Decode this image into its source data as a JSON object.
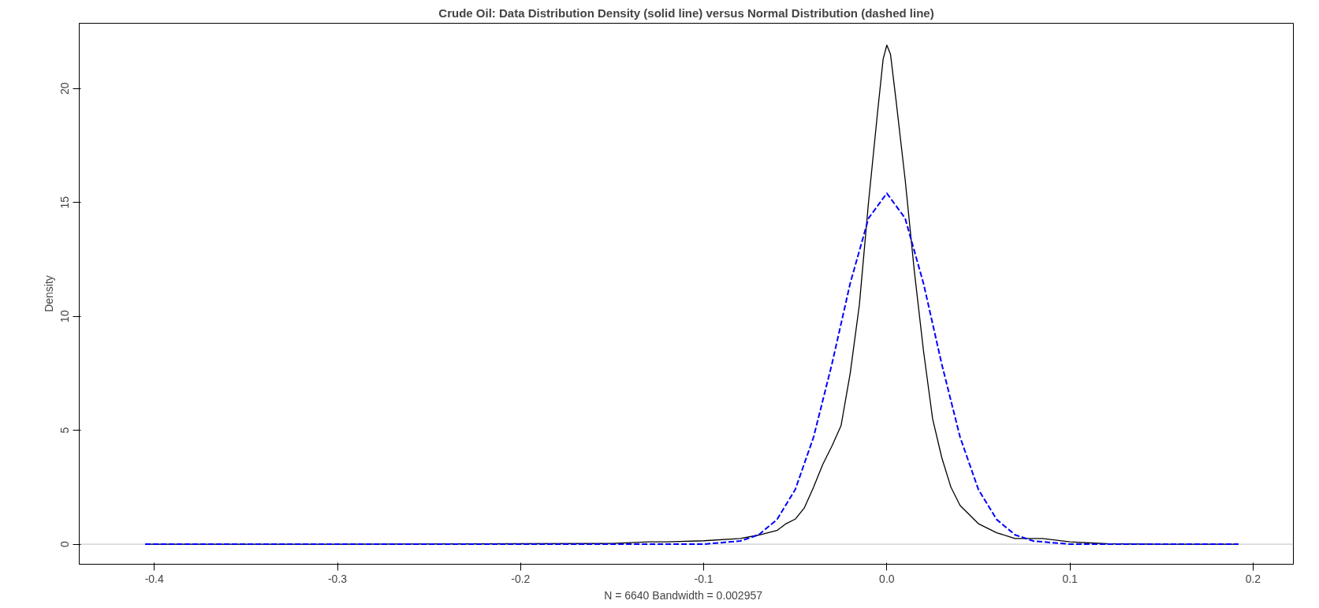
{
  "chart_data": {
    "type": "line",
    "title": "Crude Oil: Data Distribution Density (solid line) versus Normal Distribution (dashed line)",
    "xlabel": "N = 6640   Bandwidth = 0.002957",
    "ylabel": "Density",
    "xlim": [
      -0.441,
      0.222
    ],
    "ylim": [
      -0.88,
      22.86
    ],
    "xticks": [
      -0.4,
      -0.3,
      -0.2,
      -0.1,
      {
        "value": 0.0,
        "label": "0.0"
      },
      0.1,
      0.2
    ],
    "yticks": [
      0,
      5,
      10,
      15,
      20
    ],
    "grid": false,
    "marker": "none",
    "ref_lines": [
      {
        "axis": "y",
        "value": 0,
        "label": null,
        "color": "#bebebe",
        "line_style": "solid"
      }
    ],
    "series": [
      {
        "color": "#000000",
        "line_style": "solid",
        "x": [
          -0.405,
          -0.3,
          -0.2,
          -0.15,
          -0.13,
          -0.12,
          -0.1,
          -0.08,
          -0.07,
          -0.06,
          -0.055,
          -0.05,
          -0.045,
          -0.04,
          -0.035,
          -0.03,
          -0.025,
          -0.02,
          -0.015,
          -0.01,
          -0.005,
          -0.002,
          0.0,
          0.002,
          0.005,
          0.01,
          0.015,
          0.02,
          0.025,
          0.03,
          0.035,
          0.04,
          0.05,
          0.06,
          0.07,
          0.085,
          0.1,
          0.12,
          0.15,
          0.192
        ],
        "values": [
          0,
          0,
          0.02,
          0.03,
          0.1,
          0.1,
          0.15,
          0.25,
          0.4,
          0.6,
          0.9,
          1.1,
          1.6,
          2.5,
          3.5,
          4.3,
          5.2,
          7.5,
          10.5,
          15,
          19,
          21.3,
          21.9,
          21.5,
          19.5,
          16,
          12,
          8.5,
          5.5,
          3.8,
          2.5,
          1.7,
          0.9,
          0.5,
          0.25,
          0.25,
          0.1,
          0.02,
          0,
          0
        ]
      },
      {
        "color": "#0000ff",
        "line_style": "dashed",
        "x": [
          -0.405,
          -0.3,
          -0.2,
          -0.1,
          -0.08,
          -0.07,
          -0.06,
          -0.05,
          -0.04,
          -0.03,
          -0.02,
          -0.01,
          0.0,
          0.01,
          0.02,
          0.03,
          0.04,
          0.05,
          0.06,
          0.07,
          0.08,
          0.1,
          0.192
        ],
        "values": [
          0,
          0,
          0,
          0,
          0.14,
          0.41,
          1.08,
          2.4,
          4.7,
          7.9,
          11.45,
          14.3,
          15.4,
          14.3,
          11.45,
          7.9,
          4.7,
          2.4,
          1.08,
          0.41,
          0.14,
          0,
          0
        ]
      }
    ]
  }
}
